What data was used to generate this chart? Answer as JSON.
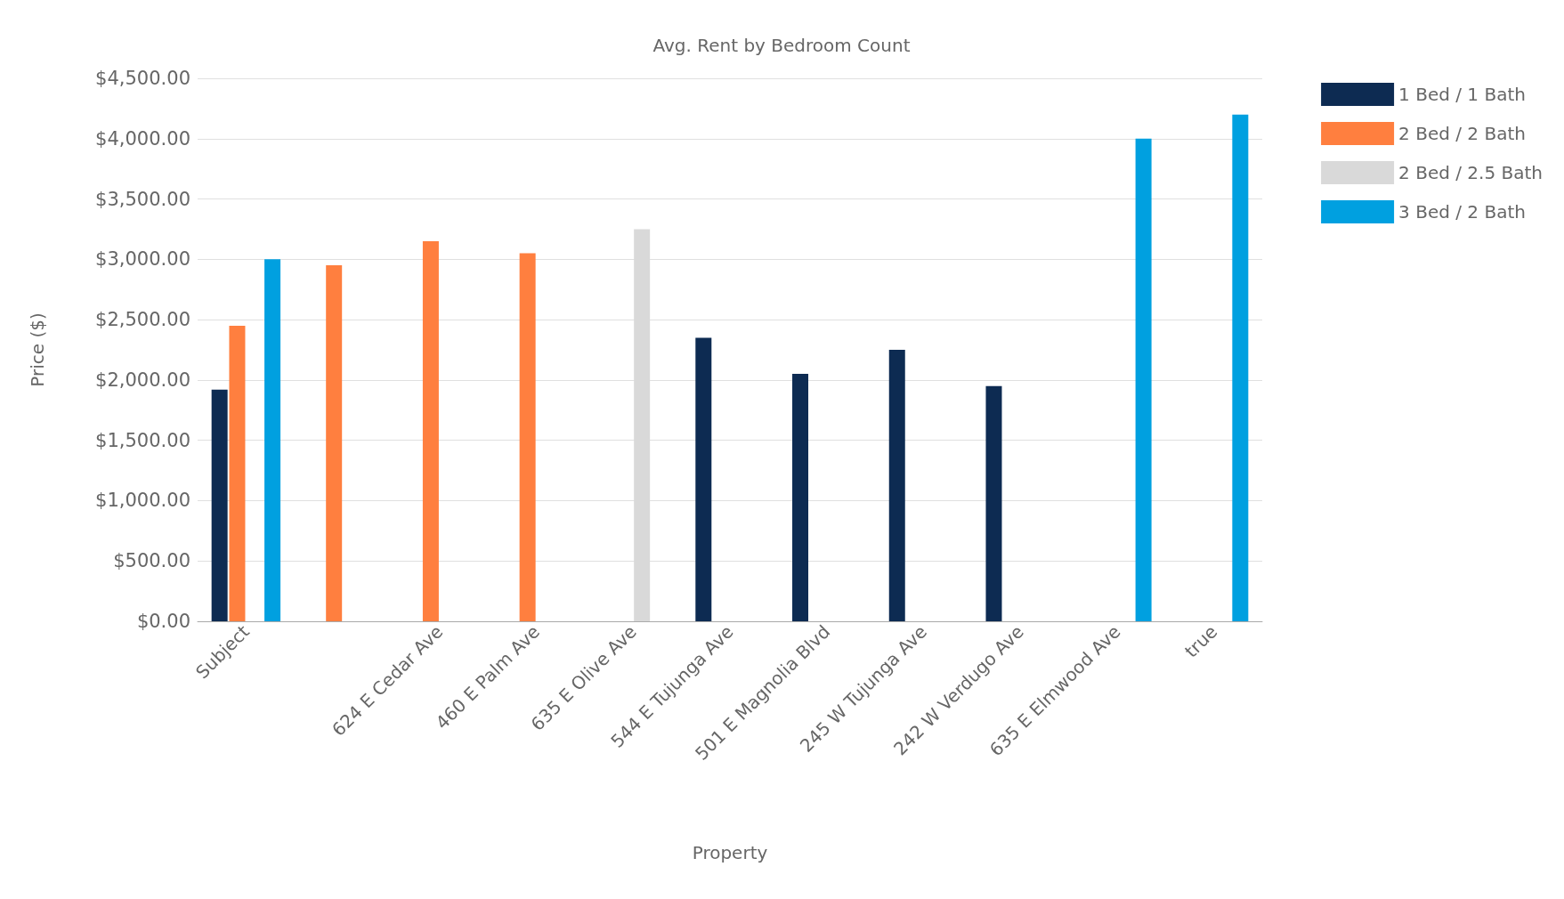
{
  "chart_data": {
    "type": "bar",
    "title": "Avg. Rent by Bedroom Count",
    "xlabel": "Property",
    "ylabel": "Price ($)",
    "categories": [
      "Subject",
      null,
      "624 E Cedar Ave",
      "460 E Palm Ave",
      "635 E Olive Ave",
      "544 E Tujunga Ave",
      "501 E Magnolia Blvd",
      "245 W Tujunga Ave",
      "242 W Verdugo Ave",
      "635 E Elmwood Ave",
      "true"
    ],
    "series": [
      {
        "name": "1 Bed / 1 Bath",
        "color": "#0d2b52",
        "values": [
          1920,
          null,
          null,
          null,
          null,
          2350,
          2050,
          2250,
          1950,
          null,
          null
        ]
      },
      {
        "name": "2 Bed / 2 Bath",
        "color": "#ff7f3f",
        "values": [
          2450,
          2950,
          3150,
          3050,
          null,
          null,
          null,
          null,
          null,
          null,
          null
        ]
      },
      {
        "name": "2 Bed / 2.5 Bath",
        "color": "#d9d9d9",
        "values": [
          null,
          null,
          null,
          null,
          3250,
          null,
          null,
          null,
          null,
          null,
          null
        ]
      },
      {
        "name": "3 Bed / 2 Bath",
        "color": "#00a0e0",
        "values": [
          3000,
          null,
          null,
          null,
          null,
          null,
          null,
          null,
          null,
          4000,
          4200
        ]
      }
    ],
    "ylim": [
      0,
      4500
    ],
    "yticks": [
      {
        "value": 0,
        "label": "$0.00"
      },
      {
        "value": 500,
        "label": "$500.00"
      },
      {
        "value": 1000,
        "label": "$1,000.00"
      },
      {
        "value": 1500,
        "label": "$1,500.00"
      },
      {
        "value": 2000,
        "label": "$2,000.00"
      },
      {
        "value": 2500,
        "label": "$2,500.00"
      },
      {
        "value": 3000,
        "label": "$3,000.00"
      },
      {
        "value": 3500,
        "label": "$3,500.00"
      },
      {
        "value": 4000,
        "label": "$4,000.00"
      },
      {
        "value": 4500,
        "label": "$4,500.00"
      }
    ],
    "grid": "y",
    "legend": "top right"
  }
}
